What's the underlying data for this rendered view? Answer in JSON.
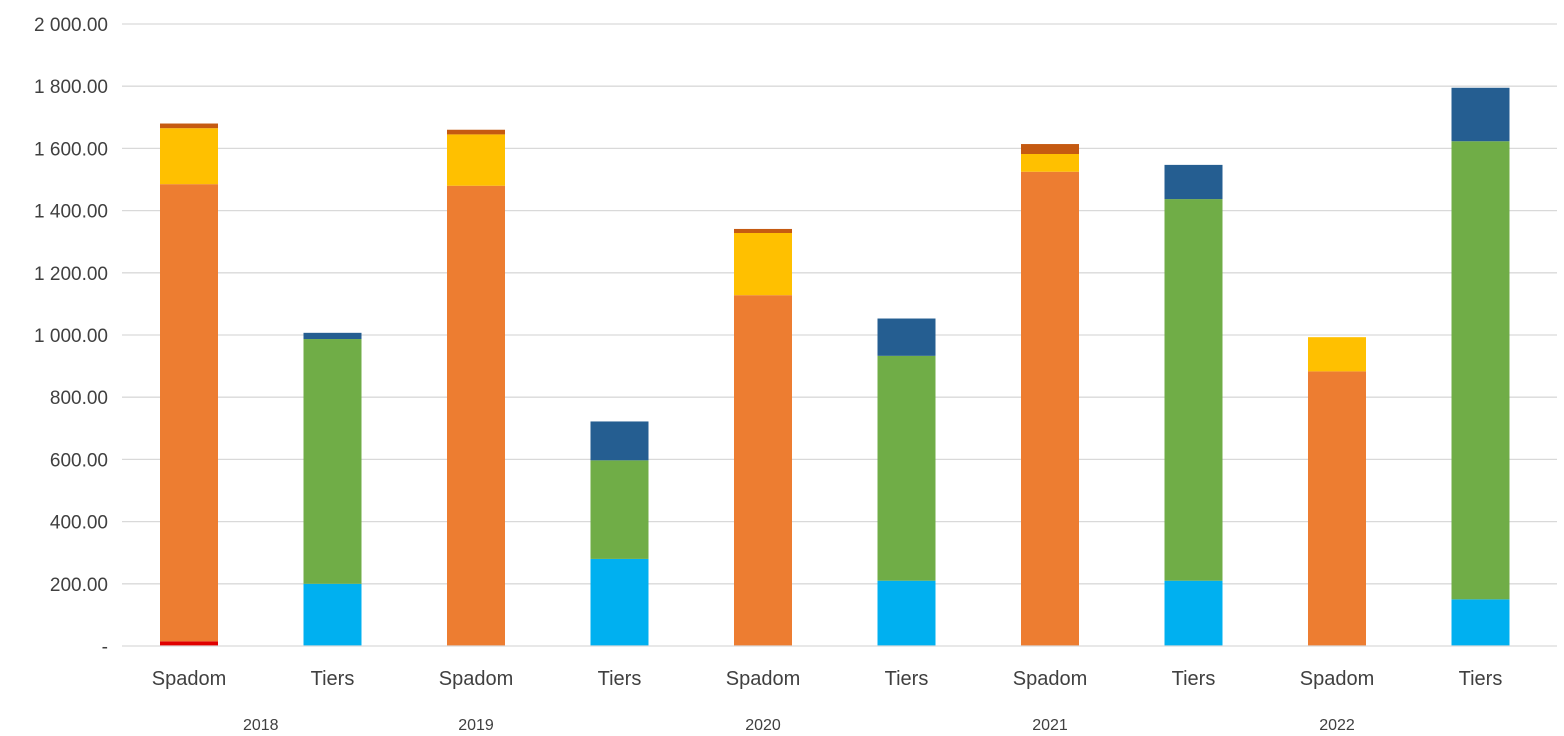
{
  "chart_data": {
    "type": "bar",
    "stacked": true,
    "title": "",
    "xlabel": "",
    "ylabel": "",
    "ylim": [
      0,
      2000
    ],
    "grid": true,
    "y_ticks": [
      {
        "value": 0,
        "label": "-"
      },
      {
        "value": 200,
        "label": "200.00"
      },
      {
        "value": 400,
        "label": "400.00"
      },
      {
        "value": 600,
        "label": "600.00"
      },
      {
        "value": 800,
        "label": "800.00"
      },
      {
        "value": 1000,
        "label": "1 000.00"
      },
      {
        "value": 1200,
        "label": "1 200.00"
      },
      {
        "value": 1400,
        "label": "1 400.00"
      },
      {
        "value": 1600,
        "label": "1 600.00"
      },
      {
        "value": 1800,
        "label": "1 800.00"
      },
      {
        "value": 2000,
        "label": "2 000.00"
      }
    ],
    "categories": [
      "Spadom",
      "Tiers",
      "Spadom",
      "Tiers",
      "Spadom",
      "Tiers",
      "Spadom",
      "Tiers",
      "Spadom",
      "Tiers"
    ],
    "groups": [
      {
        "label": "2018",
        "start": 0,
        "end": 1
      },
      {
        "label": "2019",
        "start": 1,
        "end": 3
      },
      {
        "label": "2020",
        "start": 3,
        "end": 5
      },
      {
        "label": "2021",
        "start": 5,
        "end": 7
      },
      {
        "label": "2022",
        "start": 7,
        "end": 9
      }
    ],
    "series": [
      {
        "color": "#E00000",
        "values": [
          15,
          0,
          0,
          0,
          0,
          0,
          0,
          0,
          0,
          0
        ]
      },
      {
        "color": "#00B0F0",
        "values": [
          0,
          200,
          0,
          280,
          0,
          210,
          0,
          210,
          0,
          150
        ]
      },
      {
        "color": "#ED7D31",
        "values": [
          1470,
          0,
          1480,
          0,
          1128,
          0,
          1525,
          0,
          883,
          0
        ]
      },
      {
        "color": "#70AD47",
        "values": [
          0,
          787,
          0,
          317,
          0,
          723,
          0,
          1227,
          0,
          1473
        ]
      },
      {
        "color": "#FFC000",
        "values": [
          180,
          0,
          165,
          0,
          200,
          0,
          57,
          0,
          110,
          0
        ]
      },
      {
        "color": "#C55A11",
        "values": [
          15,
          0,
          15,
          0,
          13,
          0,
          32,
          0,
          0,
          0
        ]
      },
      {
        "color": "#255E91",
        "values": [
          0,
          20,
          0,
          125,
          0,
          120,
          0,
          110,
          0,
          172
        ]
      }
    ]
  }
}
